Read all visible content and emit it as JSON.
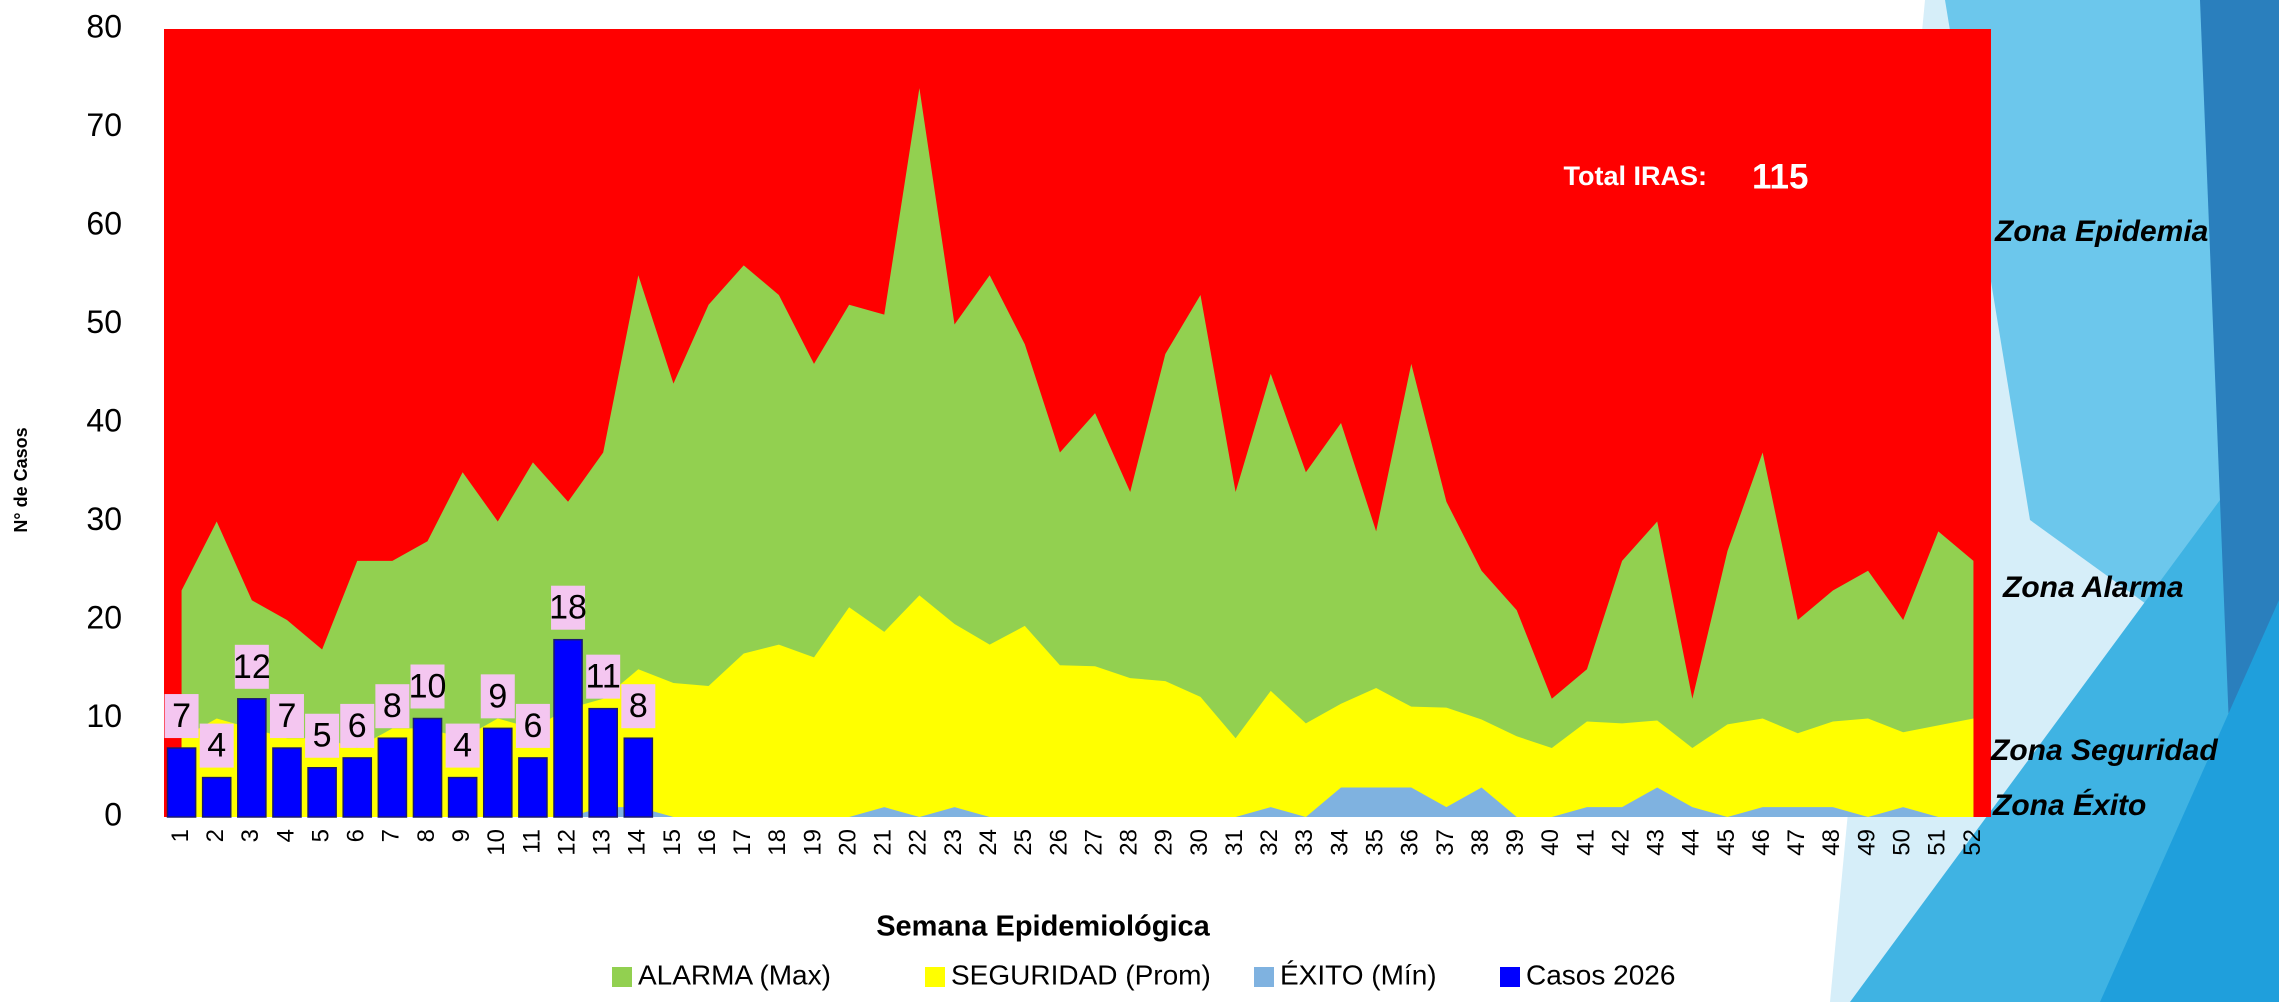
{
  "chart_data": {
    "type": "area",
    "y_axis_label": "N° de Casos",
    "x_axis_label": "Semana Epidemiológica",
    "categories": [
      "1",
      "2",
      "3",
      "4",
      "5",
      "6",
      "7",
      "8",
      "9",
      "10",
      "11",
      "12",
      "13",
      "14",
      "15",
      "16",
      "17",
      "18",
      "19",
      "20",
      "21",
      "22",
      "23",
      "24",
      "25",
      "26",
      "27",
      "28",
      "29",
      "30",
      "31",
      "32",
      "33",
      "34",
      "35",
      "36",
      "37",
      "38",
      "39",
      "40",
      "41",
      "42",
      "43",
      "44",
      "45",
      "46",
      "47",
      "48",
      "49",
      "50",
      "51",
      "52"
    ],
    "series": [
      {
        "name": "ALARMA (Max)",
        "type": "area",
        "color": "#92d050",
        "values": [
          23,
          30,
          22,
          20,
          17,
          26,
          26,
          28,
          35,
          30,
          36,
          32,
          37,
          55,
          44,
          52,
          56,
          53,
          46,
          52,
          51,
          74,
          50,
          55,
          48,
          37,
          41,
          33,
          47,
          53,
          33,
          45,
          35,
          40,
          29,
          46,
          32,
          25,
          21,
          12,
          15,
          26,
          30,
          12,
          27,
          37,
          20,
          23,
          25,
          20,
          29,
          26
        ]
      },
      {
        "name": "SEGURIDAD (Prom)",
        "type": "area",
        "color": "#ffff00",
        "values": [
          8,
          10,
          9,
          8,
          8,
          7,
          9,
          9,
          8,
          10,
          9,
          11,
          12,
          15,
          13.6,
          13.3,
          16.6,
          17.5,
          16.2,
          21.3,
          18.8,
          22.5,
          19.6,
          17.5,
          19.4,
          15.4,
          15.3,
          14.1,
          13.8,
          12.2,
          8,
          12.8,
          9.5,
          11.5,
          13.1,
          11.2,
          11.1,
          9.9,
          8.2,
          7,
          9.7,
          9.5,
          9.8,
          7,
          9.4,
          10,
          8.5,
          9.7,
          10,
          8.6,
          9.3,
          10
        ]
      },
      {
        "name": "ÉXITO (Mín)",
        "type": "area",
        "color": "#7fb2e0",
        "values": [
          0,
          0,
          0,
          0,
          0,
          0,
          0,
          0,
          0,
          0,
          0,
          0,
          1,
          1,
          0,
          0,
          0,
          0,
          0,
          0,
          1,
          0,
          1,
          0,
          0,
          0,
          0,
          0,
          0,
          0,
          0,
          1,
          0,
          3,
          3,
          3,
          1,
          3,
          0,
          0,
          1,
          1,
          3,
          1,
          0,
          1,
          1,
          1,
          0,
          1,
          0,
          0
        ]
      },
      {
        "name": "Casos 2026",
        "type": "bar",
        "color": "#0000ff",
        "values": [
          7,
          4,
          12,
          7,
          5,
          6,
          8,
          10,
          4,
          9,
          6,
          18,
          11,
          8,
          null,
          null,
          null,
          null,
          null,
          null,
          null,
          null,
          null,
          null,
          null,
          null,
          null,
          null,
          null,
          null,
          null,
          null,
          null,
          null,
          null,
          null,
          null,
          null,
          null,
          null,
          null,
          null,
          null,
          null,
          null,
          null,
          null,
          null,
          null,
          null,
          null,
          null
        ]
      }
    ],
    "background_zone_color": "#ff0000",
    "ylim": [
      0,
      80
    ],
    "yticks": [
      0,
      10,
      20,
      30,
      40,
      50,
      60,
      70,
      80
    ],
    "grid": false,
    "legend_position": "bottom",
    "total_label": "Total IRAS:",
    "total_value": 115,
    "zone_labels": [
      "Zona Epidemia",
      "Zona  Alarma",
      "Zona Seguridad",
      "Zona Éxito"
    ]
  }
}
